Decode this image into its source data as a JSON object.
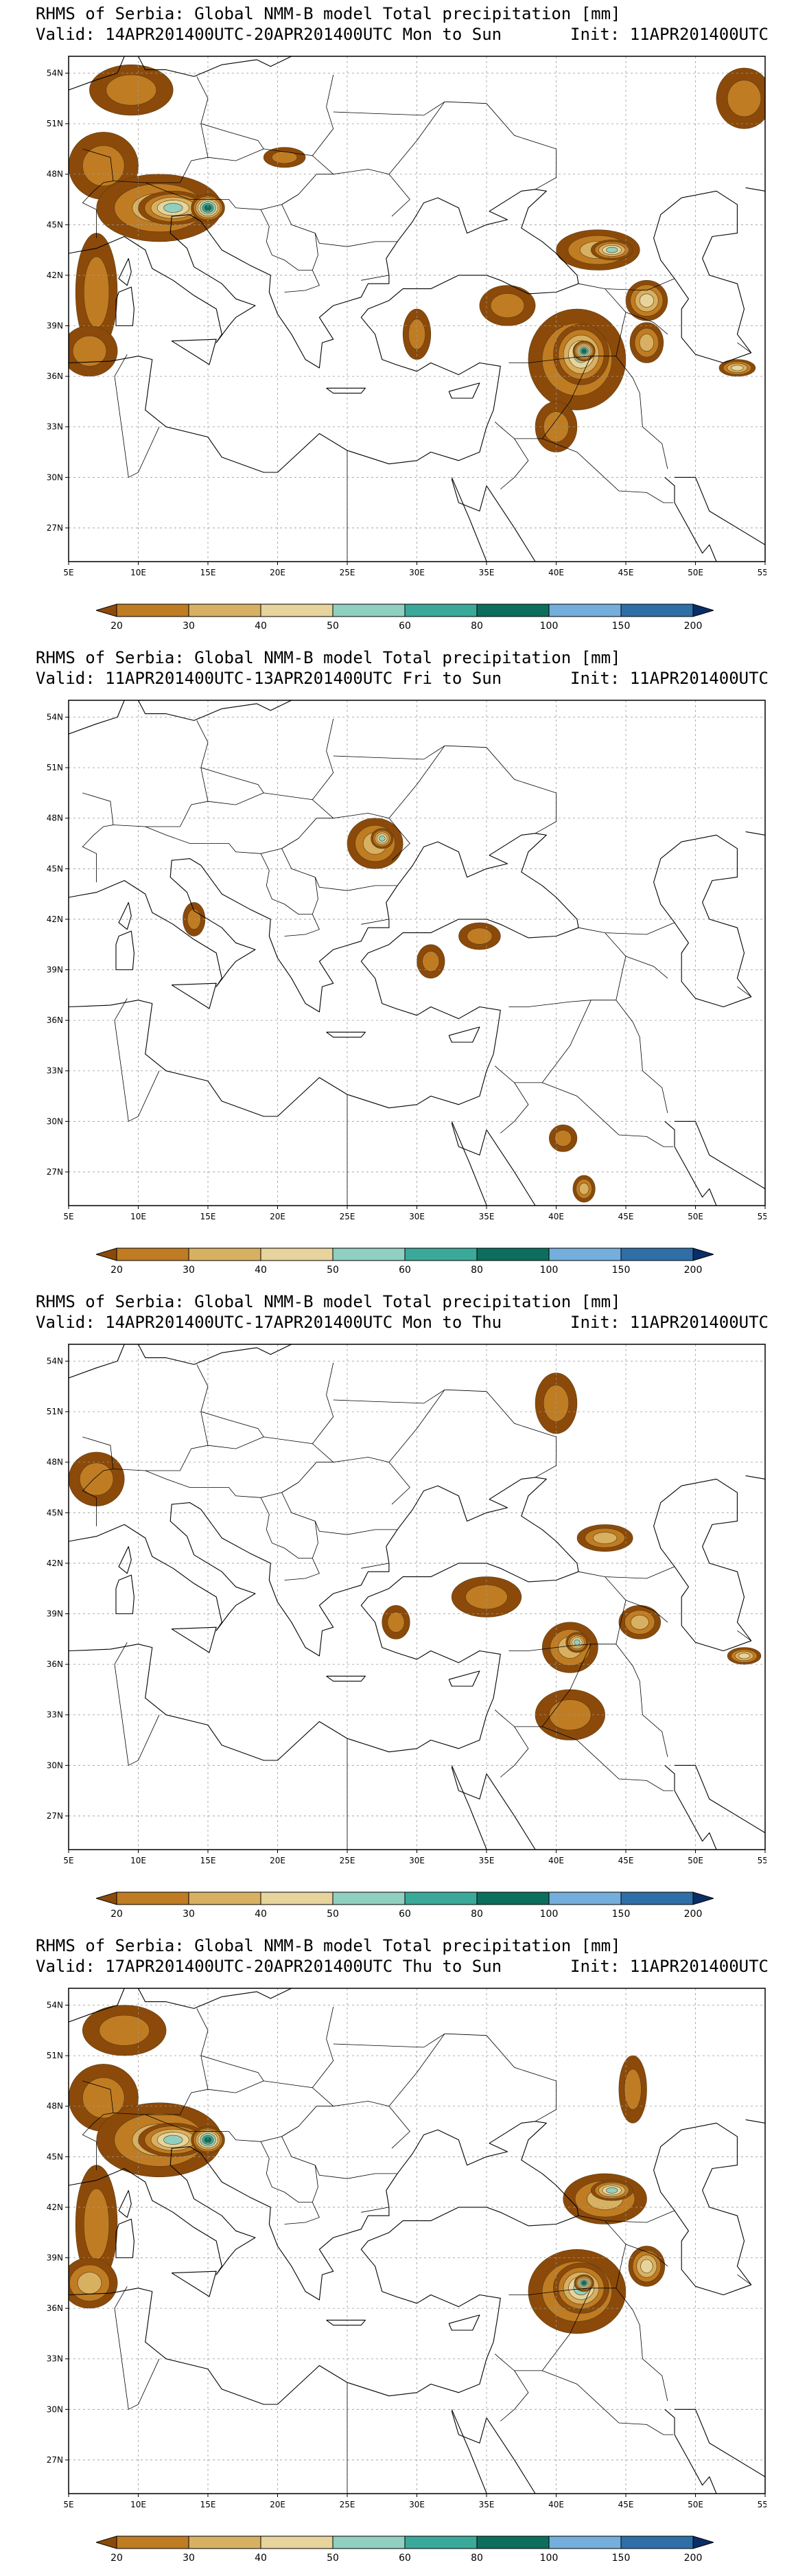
{
  "panels": [
    {
      "title": "RHMS of Serbia: Global NMM-B model Total precipitation [mm]",
      "valid": "Valid: 14APR201400UTC-20APR201400UTC Mon to Sun",
      "init": "Init: 11APR201400UTC",
      "rain_cells": [
        {
          "lon": 9.5,
          "lat": 53.0,
          "rlon": 3.0,
          "rlat": 1.5,
          "lvl": 1
        },
        {
          "lon": 7.5,
          "lat": 48.5,
          "rlon": 2.5,
          "rlat": 2.0,
          "lvl": 1
        },
        {
          "lon": 11.5,
          "lat": 46.0,
          "rlon": 4.5,
          "rlat": 2.0,
          "lvl": 2
        },
        {
          "lon": 12.5,
          "lat": 46.0,
          "rlon": 2.5,
          "rlat": 1.0,
          "lvl": 4
        },
        {
          "lon": 15.0,
          "lat": 46.0,
          "rlon": 1.2,
          "rlat": 0.8,
          "lvl": 6
        },
        {
          "lon": 7.0,
          "lat": 41.0,
          "rlon": 1.5,
          "rlat": 3.5,
          "lvl": 1
        },
        {
          "lon": 6.5,
          "lat": 37.5,
          "rlon": 2.0,
          "rlat": 1.5,
          "lvl": 1
        },
        {
          "lon": 20.5,
          "lat": 49.0,
          "rlon": 1.5,
          "rlat": 0.6,
          "lvl": 1
        },
        {
          "lon": 36.5,
          "lat": 40.2,
          "rlon": 2.0,
          "rlat": 1.2,
          "lvl": 1
        },
        {
          "lon": 30.0,
          "lat": 38.5,
          "rlon": 1.0,
          "rlat": 1.5,
          "lvl": 1
        },
        {
          "lon": 43.0,
          "lat": 43.5,
          "rlon": 3.0,
          "rlat": 1.2,
          "lvl": 2
        },
        {
          "lon": 44.0,
          "lat": 43.5,
          "rlon": 1.5,
          "rlat": 0.6,
          "lvl": 4
        },
        {
          "lon": 41.5,
          "lat": 37.0,
          "rlon": 3.5,
          "rlat": 3.0,
          "lvl": 2
        },
        {
          "lon": 41.8,
          "lat": 37.3,
          "rlon": 2.0,
          "rlat": 1.8,
          "lvl": 4
        },
        {
          "lon": 42.0,
          "lat": 37.5,
          "rlon": 0.8,
          "rlat": 0.6,
          "lvl": 6
        },
        {
          "lon": 40.0,
          "lat": 33.0,
          "rlon": 1.5,
          "rlat": 1.5,
          "lvl": 1
        },
        {
          "lon": 46.5,
          "lat": 40.5,
          "rlon": 1.5,
          "rlat": 1.2,
          "lvl": 3
        },
        {
          "lon": 46.5,
          "lat": 38.0,
          "rlon": 1.2,
          "rlat": 1.2,
          "lvl": 2
        },
        {
          "lon": 53.5,
          "lat": 52.5,
          "rlon": 2.0,
          "rlat": 1.8,
          "lvl": 1
        },
        {
          "lon": 53.0,
          "lat": 36.5,
          "rlon": 1.3,
          "rlat": 0.5,
          "lvl": 3
        }
      ]
    },
    {
      "title": "RHMS of Serbia: Global NMM-B model Total precipitation [mm]",
      "valid": "Valid: 11APR201400UTC-13APR201400UTC Fri to Sun",
      "init": "Init: 11APR201400UTC",
      "rain_cells": [
        {
          "lon": 27.0,
          "lat": 46.5,
          "rlon": 2.0,
          "rlat": 1.5,
          "lvl": 2
        },
        {
          "lon": 27.5,
          "lat": 46.8,
          "rlon": 0.8,
          "rlat": 0.6,
          "lvl": 4
        },
        {
          "lon": 14.0,
          "lat": 42.0,
          "rlon": 0.8,
          "rlat": 1.0,
          "lvl": 1
        },
        {
          "lon": 34.5,
          "lat": 41.0,
          "rlon": 1.5,
          "rlat": 0.8,
          "lvl": 1
        },
        {
          "lon": 31.0,
          "lat": 39.5,
          "rlon": 1.0,
          "rlat": 1.0,
          "lvl": 1
        },
        {
          "lon": 40.5,
          "lat": 29.0,
          "rlon": 1.0,
          "rlat": 0.8,
          "lvl": 1
        },
        {
          "lon": 42.0,
          "lat": 26.0,
          "rlon": 0.8,
          "rlat": 0.8,
          "lvl": 2
        }
      ]
    },
    {
      "title": "RHMS of Serbia: Global NMM-B model Total precipitation [mm]",
      "valid": "Valid: 14APR201400UTC-17APR201400UTC Mon to Thu",
      "init": "Init: 11APR201400UTC",
      "rain_cells": [
        {
          "lon": 7.0,
          "lat": 47.0,
          "rlon": 2.0,
          "rlat": 1.6,
          "lvl": 1
        },
        {
          "lon": 40.0,
          "lat": 51.5,
          "rlon": 1.5,
          "rlat": 1.8,
          "lvl": 1
        },
        {
          "lon": 35.0,
          "lat": 40.0,
          "rlon": 2.5,
          "rlat": 1.2,
          "lvl": 1
        },
        {
          "lon": 28.5,
          "lat": 38.5,
          "rlon": 1.0,
          "rlat": 1.0,
          "lvl": 1
        },
        {
          "lon": 43.5,
          "lat": 43.5,
          "rlon": 2.0,
          "rlat": 0.8,
          "lvl": 2
        },
        {
          "lon": 41.0,
          "lat": 37.0,
          "rlon": 2.0,
          "rlat": 1.5,
          "lvl": 2
        },
        {
          "lon": 41.5,
          "lat": 37.3,
          "rlon": 0.8,
          "rlat": 0.6,
          "lvl": 4
        },
        {
          "lon": 41.0,
          "lat": 33.0,
          "rlon": 2.5,
          "rlat": 1.5,
          "lvl": 1
        },
        {
          "lon": 46.0,
          "lat": 38.5,
          "rlon": 1.5,
          "rlat": 1.0,
          "lvl": 2
        },
        {
          "lon": 53.5,
          "lat": 36.5,
          "rlon": 1.2,
          "rlat": 0.5,
          "lvl": 3
        }
      ]
    },
    {
      "title": "RHMS of Serbia: Global NMM-B model Total precipitation [mm]",
      "valid": "Valid: 17APR201400UTC-20APR201400UTC Thu to Sun",
      "init": "Init: 11APR201400UTC",
      "rain_cells": [
        {
          "lon": 9.0,
          "lat": 52.5,
          "rlon": 3.0,
          "rlat": 1.5,
          "lvl": 1
        },
        {
          "lon": 7.5,
          "lat": 48.5,
          "rlon": 2.5,
          "rlat": 2.0,
          "lvl": 1
        },
        {
          "lon": 11.5,
          "lat": 46.0,
          "rlon": 4.5,
          "rlat": 2.2,
          "lvl": 2
        },
        {
          "lon": 12.5,
          "lat": 46.0,
          "rlon": 2.5,
          "rlat": 1.0,
          "lvl": 4
        },
        {
          "lon": 15.0,
          "lat": 46.0,
          "rlon": 1.2,
          "rlat": 0.8,
          "lvl": 6
        },
        {
          "lon": 7.0,
          "lat": 41.0,
          "rlon": 1.5,
          "rlat": 3.5,
          "lvl": 1
        },
        {
          "lon": 6.5,
          "lat": 37.5,
          "rlon": 2.0,
          "rlat": 1.5,
          "lvl": 2
        },
        {
          "lon": 45.5,
          "lat": 49.0,
          "rlon": 1.0,
          "rlat": 2.0,
          "lvl": 1
        },
        {
          "lon": 43.5,
          "lat": 42.5,
          "rlon": 3.0,
          "rlat": 1.5,
          "lvl": 2
        },
        {
          "lon": 44.0,
          "lat": 43.0,
          "rlon": 1.5,
          "rlat": 0.6,
          "lvl": 4
        },
        {
          "lon": 41.5,
          "lat": 37.0,
          "rlon": 3.5,
          "rlat": 2.5,
          "lvl": 2
        },
        {
          "lon": 41.8,
          "lat": 37.2,
          "rlon": 2.0,
          "rlat": 1.5,
          "lvl": 4
        },
        {
          "lon": 42.0,
          "lat": 37.5,
          "rlon": 0.7,
          "rlat": 0.5,
          "lvl": 6
        },
        {
          "lon": 46.5,
          "lat": 38.5,
          "rlon": 1.3,
          "rlat": 1.2,
          "lvl": 3
        }
      ]
    }
  ],
  "map": {
    "lon_min": 5,
    "lon_max": 55,
    "lat_min": 25,
    "lat_max": 55,
    "lon_ticks": [
      "5E",
      "10E",
      "15E",
      "20E",
      "25E",
      "30E",
      "35E",
      "40E",
      "45E",
      "50E",
      "55E"
    ],
    "lat_ticks": [
      "27N",
      "30N",
      "33N",
      "36N",
      "39N",
      "42N",
      "45N",
      "48N",
      "51N",
      "54N"
    ],
    "lon_tick_values": [
      5,
      10,
      15,
      20,
      25,
      30,
      35,
      40,
      45,
      50,
      55
    ],
    "lat_tick_values": [
      27,
      30,
      33,
      36,
      39,
      42,
      45,
      48,
      51,
      54
    ],
    "gridline_color": "#999999"
  },
  "colorbar": {
    "labels": [
      "20",
      "30",
      "40",
      "50",
      "60",
      "80",
      "100",
      "150",
      "200"
    ],
    "colors": [
      "#8b4a0a",
      "#c07c22",
      "#d8b062",
      "#e6d49c",
      "#8fd0c0",
      "#3aa99a",
      "#0c6e5c",
      "#74aedc",
      "#2f6fa8",
      "#0a2e68"
    ]
  }
}
